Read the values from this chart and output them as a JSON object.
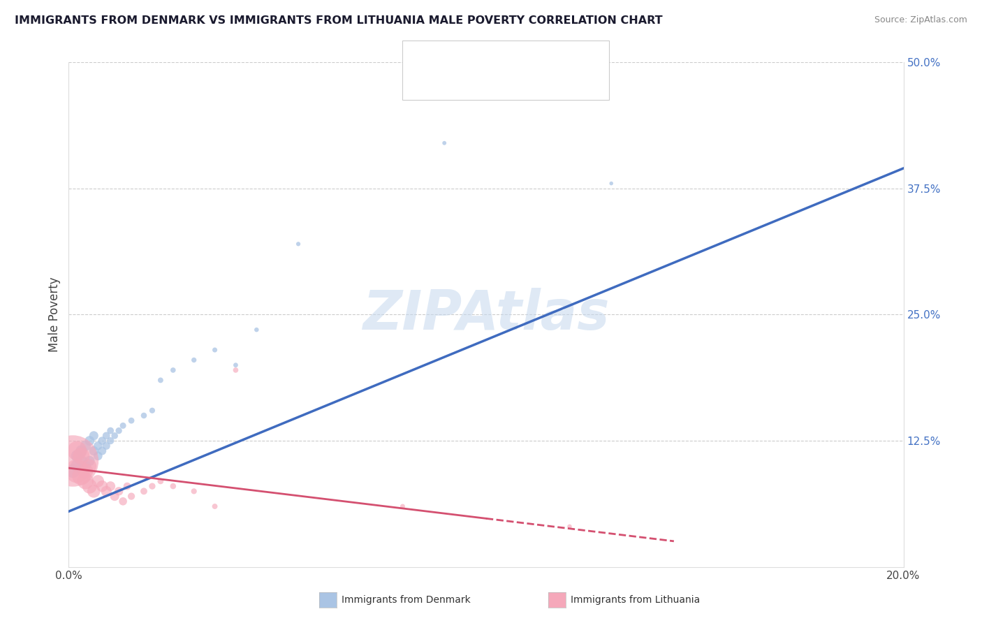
{
  "title": "IMMIGRANTS FROM DENMARK VS IMMIGRANTS FROM LITHUANIA MALE POVERTY CORRELATION CHART",
  "source": "Source: ZipAtlas.com",
  "ylabel": "Male Poverty",
  "xlim": [
    0.0,
    0.2
  ],
  "ylim": [
    0.0,
    0.5
  ],
  "xtick_labels": [
    "0.0%",
    "20.0%"
  ],
  "xtick_positions": [
    0.0,
    0.2
  ],
  "ytick_labels": [
    "12.5%",
    "25.0%",
    "37.5%",
    "50.0%"
  ],
  "ytick_positions": [
    0.125,
    0.25,
    0.375,
    0.5
  ],
  "denmark_color": "#aac4e4",
  "denmark_color_line": "#3f6bbf",
  "lithuania_color": "#f5a8ba",
  "lithuania_color_line": "#d45070",
  "watermark": "ZIPAtlas",
  "denmark_trend_x": [
    0.0,
    0.2
  ],
  "denmark_trend_y": [
    0.055,
    0.395
  ],
  "lithuania_trend_x": [
    0.0,
    0.14
  ],
  "lithuania_trend_y": [
    0.098,
    0.028
  ],
  "denmark_x": [
    0.001,
    0.002,
    0.002,
    0.003,
    0.003,
    0.004,
    0.004,
    0.005,
    0.005,
    0.006,
    0.006,
    0.007,
    0.007,
    0.008,
    0.008,
    0.009,
    0.009,
    0.01,
    0.01,
    0.011,
    0.012,
    0.013,
    0.015,
    0.018,
    0.02,
    0.022,
    0.025,
    0.03,
    0.035,
    0.04,
    0.045,
    0.055,
    0.09,
    0.13
  ],
  "denmark_y": [
    0.095,
    0.1,
    0.11,
    0.105,
    0.115,
    0.1,
    0.12,
    0.105,
    0.125,
    0.115,
    0.13,
    0.11,
    0.12,
    0.115,
    0.125,
    0.12,
    0.13,
    0.125,
    0.135,
    0.13,
    0.135,
    0.14,
    0.145,
    0.15,
    0.155,
    0.185,
    0.195,
    0.205,
    0.215,
    0.2,
    0.235,
    0.32,
    0.42,
    0.38
  ],
  "denmark_sizes": [
    200,
    180,
    160,
    150,
    140,
    130,
    120,
    110,
    100,
    95,
    90,
    85,
    80,
    75,
    70,
    65,
    60,
    55,
    50,
    48,
    45,
    42,
    40,
    38,
    35,
    32,
    30,
    28,
    26,
    24,
    22,
    20,
    18,
    16
  ],
  "lithuania_x": [
    0.001,
    0.002,
    0.002,
    0.003,
    0.003,
    0.004,
    0.004,
    0.005,
    0.005,
    0.006,
    0.007,
    0.008,
    0.009,
    0.01,
    0.011,
    0.012,
    0.013,
    0.014,
    0.015,
    0.018,
    0.02,
    0.022,
    0.025,
    0.03,
    0.035,
    0.04,
    0.08,
    0.12
  ],
  "lithuania_y": [
    0.105,
    0.095,
    0.115,
    0.09,
    0.11,
    0.085,
    0.095,
    0.08,
    0.1,
    0.075,
    0.085,
    0.08,
    0.075,
    0.08,
    0.07,
    0.075,
    0.065,
    0.08,
    0.07,
    0.075,
    0.08,
    0.085,
    0.08,
    0.075,
    0.06,
    0.195,
    0.06,
    0.04
  ],
  "lithuania_sizes": [
    2800,
    600,
    400,
    350,
    300,
    280,
    250,
    230,
    200,
    180,
    160,
    140,
    120,
    100,
    90,
    80,
    70,
    60,
    55,
    50,
    45,
    40,
    38,
    35,
    32,
    30,
    25,
    22
  ]
}
